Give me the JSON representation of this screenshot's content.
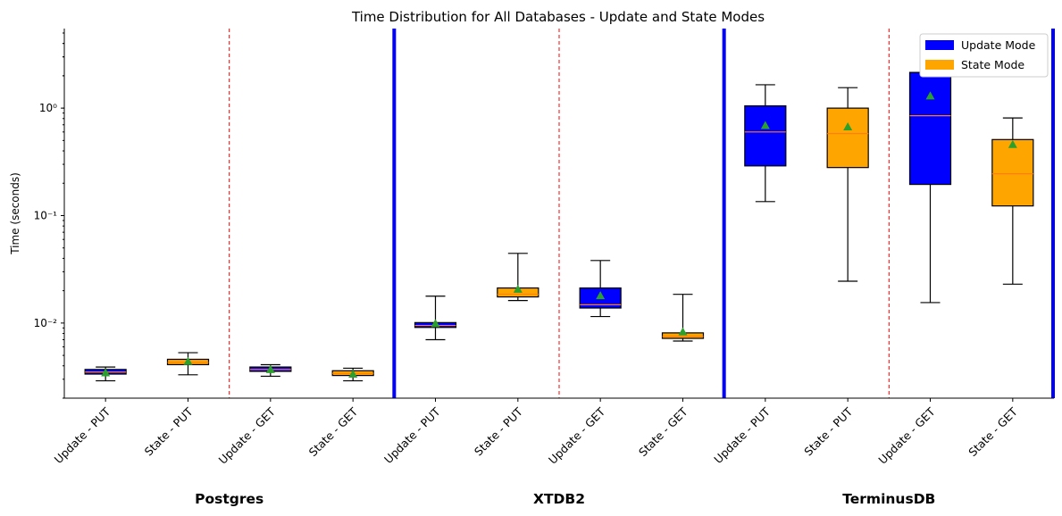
{
  "chart_data": {
    "type": "box",
    "title": "Time Distribution for All Databases - Update and State Modes",
    "xlabel": "",
    "ylabel": "Time (seconds)",
    "yscale": "log",
    "ylim": [
      0.002,
      5.5
    ],
    "y_ticks": [
      0.01,
      0.1,
      1
    ],
    "y_tick_labels": [
      "10⁻²",
      "10⁻¹",
      "10⁰"
    ],
    "categories": [
      "Update - PUT",
      "State - PUT",
      "Update - GET",
      "State - GET",
      "Update - PUT",
      "State - PUT",
      "Update - GET",
      "State - GET",
      "Update - PUT",
      "State - PUT",
      "Update - GET",
      "State - GET"
    ],
    "groups": [
      {
        "name": "Postgres",
        "range": [
          0,
          3
        ]
      },
      {
        "name": "XTDB2",
        "range": [
          4,
          7
        ]
      },
      {
        "name": "TerminusDB",
        "range": [
          8,
          11
        ]
      }
    ],
    "series": [
      {
        "name": "Update Mode",
        "color": "#0000ff",
        "indices": [
          0,
          2,
          4,
          6,
          8,
          10
        ],
        "boxes": [
          {
            "whislo": 0.0029,
            "q1": 0.00335,
            "med": 0.0035,
            "q3": 0.0037,
            "whishi": 0.0039,
            "mean": 0.00345
          },
          {
            "whislo": 0.0032,
            "q1": 0.00355,
            "med": 0.0037,
            "q3": 0.0039,
            "whishi": 0.0041,
            "mean": 0.0037
          },
          {
            "whislo": 0.007,
            "q1": 0.0091,
            "med": 0.0095,
            "q3": 0.0101,
            "whishi": 0.0178,
            "mean": 0.0099
          },
          {
            "whislo": 0.0115,
            "q1": 0.0138,
            "med": 0.0148,
            "q3": 0.0212,
            "whishi": 0.0382,
            "mean": 0.018
          },
          {
            "whislo": 0.135,
            "q1": 0.29,
            "med": 0.6,
            "q3": 1.05,
            "whishi": 1.65,
            "mean": 0.69
          },
          {
            "whislo": 0.0155,
            "q1": 0.195,
            "med": 0.85,
            "q3": 2.15,
            "whishi": 2.15,
            "mean": 1.3
          }
        ]
      },
      {
        "name": "State Mode",
        "color": "#ffa500",
        "indices": [
          1,
          3,
          5,
          7,
          9,
          11
        ],
        "boxes": [
          {
            "whislo": 0.0033,
            "q1": 0.0041,
            "med": 0.0043,
            "q3": 0.0046,
            "whishi": 0.0053,
            "mean": 0.0044
          },
          {
            "whislo": 0.0029,
            "q1": 0.00325,
            "med": 0.0034,
            "q3": 0.0036,
            "whishi": 0.0038,
            "mean": 0.00335
          },
          {
            "whislo": 0.0162,
            "q1": 0.0175,
            "med": 0.0185,
            "q3": 0.0212,
            "whishi": 0.0445,
            "mean": 0.0207
          },
          {
            "whislo": 0.0068,
            "q1": 0.0072,
            "med": 0.0075,
            "q3": 0.0081,
            "whishi": 0.0185,
            "mean": 0.0083
          },
          {
            "whislo": 0.0245,
            "q1": 0.28,
            "med": 0.58,
            "q3": 1.0,
            "whishi": 1.55,
            "mean": 0.67
          },
          {
            "whislo": 0.023,
            "q1": 0.123,
            "med": 0.245,
            "q3": 0.51,
            "whishi": 0.81,
            "mean": 0.46
          }
        ]
      }
    ],
    "median_color": "#ff7f0e",
    "mean_marker_color": "#2ca02c",
    "group_separator_color": "#0000ff",
    "subgroup_separator_color": "#ff0000",
    "legend": {
      "position": "top-right",
      "entries": [
        "Update Mode",
        "State Mode"
      ]
    },
    "grid": false
  }
}
